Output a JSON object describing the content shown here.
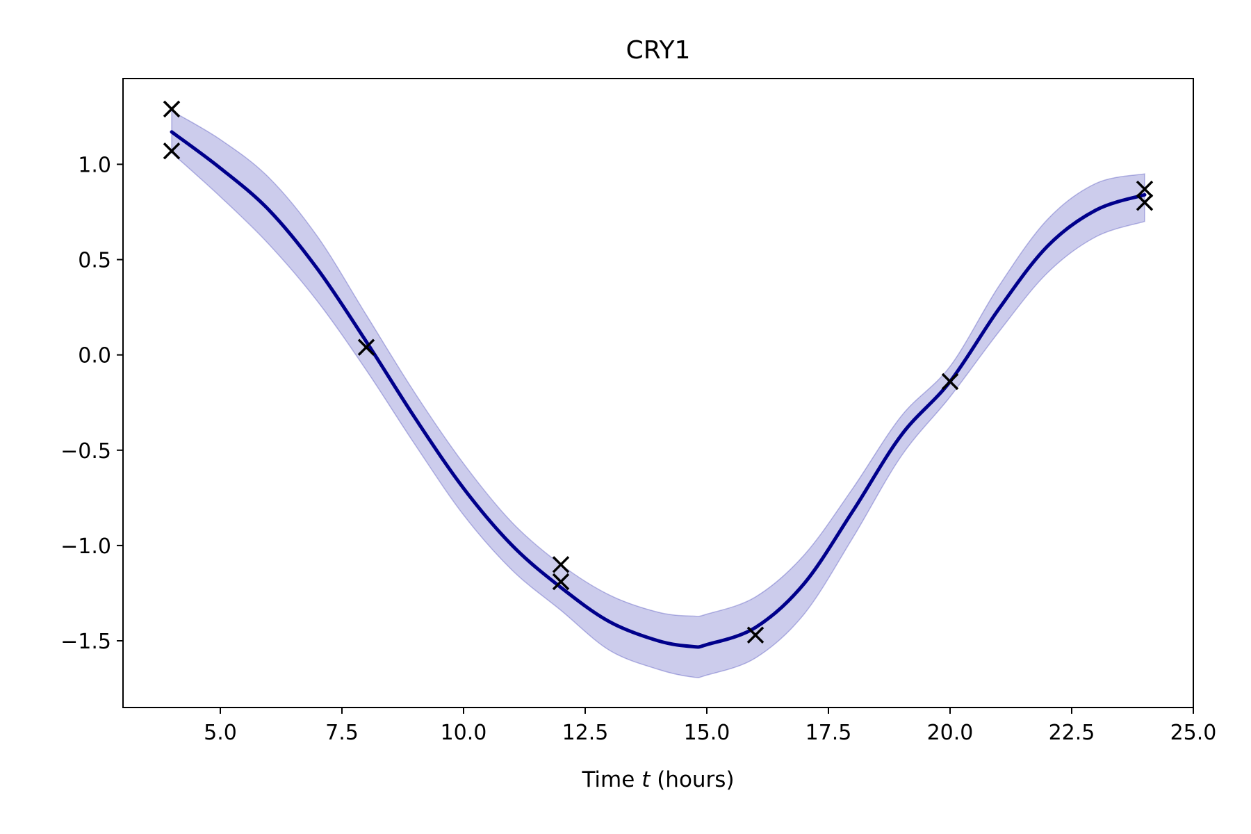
{
  "chart_data": {
    "type": "line",
    "title": "CRY1",
    "xlabel": {
      "prefix": "Time ",
      "variable": "t",
      "suffix": " (hours)"
    },
    "ylabel": "",
    "xlim": [
      3.0,
      25.0
    ],
    "ylim": [
      -1.85,
      1.45
    ],
    "x_ticks": [
      5.0,
      7.5,
      10.0,
      12.5,
      15.0,
      17.5,
      20.0,
      22.5,
      25.0
    ],
    "x_tick_labels": [
      "5.0",
      "7.5",
      "10.0",
      "12.5",
      "15.0",
      "17.5",
      "20.0",
      "22.5",
      "25.0"
    ],
    "y_ticks": [
      1.0,
      0.5,
      0.0,
      -0.5,
      -1.0,
      -1.5
    ],
    "y_tick_labels": [
      "1.0",
      "0.5",
      "0.0",
      "−0.5",
      "−1.0",
      "−1.5"
    ],
    "grid": false,
    "legend": null,
    "colors": {
      "mean_line": "#00008b",
      "band_fill": "#0000a0",
      "band_opacity": 0.2,
      "markers": "#000000"
    },
    "series": [
      {
        "kind": "mean",
        "x": [
          4,
          5,
          6,
          7,
          8,
          9,
          10,
          11,
          12,
          13,
          14,
          14.7,
          15,
          16,
          17,
          18,
          19,
          20,
          21,
          22,
          23,
          24
        ],
        "y": [
          1.17,
          0.98,
          0.76,
          0.45,
          0.07,
          -0.33,
          -0.7,
          -1.0,
          -1.22,
          -1.4,
          -1.5,
          -1.53,
          -1.52,
          -1.43,
          -1.2,
          -0.82,
          -0.42,
          -0.14,
          0.24,
          0.57,
          0.76,
          0.84
        ]
      },
      {
        "kind": "confidence_band",
        "x": [
          4,
          5,
          6,
          7,
          8,
          9,
          10,
          11,
          12,
          13,
          14,
          14.7,
          15,
          16,
          17,
          18,
          19,
          20,
          21,
          22,
          23,
          24
        ],
        "upper": [
          1.28,
          1.13,
          0.93,
          0.62,
          0.21,
          -0.2,
          -0.57,
          -0.88,
          -1.1,
          -1.26,
          -1.35,
          -1.37,
          -1.36,
          -1.27,
          -1.05,
          -0.7,
          -0.32,
          -0.06,
          0.36,
          0.71,
          0.9,
          0.95
        ],
        "lower": [
          1.06,
          0.83,
          0.58,
          0.28,
          -0.08,
          -0.47,
          -0.84,
          -1.13,
          -1.34,
          -1.55,
          -1.65,
          -1.69,
          -1.68,
          -1.59,
          -1.36,
          -0.96,
          -0.53,
          -0.22,
          0.12,
          0.43,
          0.62,
          0.7
        ]
      },
      {
        "kind": "observations",
        "x": [
          4,
          4,
          8,
          12,
          12,
          16,
          20,
          24,
          24
        ],
        "y": [
          1.29,
          1.07,
          0.04,
          -1.1,
          -1.19,
          -1.47,
          -0.14,
          0.87,
          0.8
        ]
      }
    ]
  }
}
